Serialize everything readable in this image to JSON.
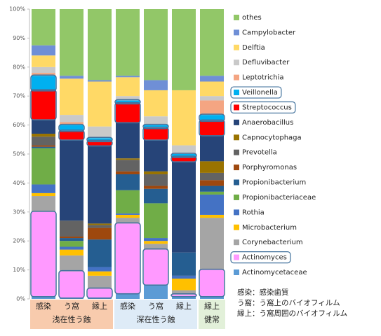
{
  "chart_data": {
    "type": "stacked_bar",
    "categories": [
      "感染",
      "う窩",
      "縁上",
      "感染",
      "う窩",
      "縁上",
      "縁上"
    ],
    "groups": [
      {
        "label": "浅在性う蝕",
        "color": "#f8cbad",
        "count": 3
      },
      {
        "label": "深在性う蝕",
        "color": "#deebf7",
        "count": 3
      },
      {
        "label": "健常",
        "color": "#e2f0d9",
        "count": 1
      }
    ],
    "ylim": [
      0,
      100
    ],
    "yticks": [
      {
        "value": 0,
        "label": "0%"
      },
      {
        "value": 10,
        "label": "10%"
      },
      {
        "value": 20,
        "label": "20%"
      },
      {
        "value": 30,
        "label": "30%"
      },
      {
        "value": 40,
        "label": "40%"
      },
      {
        "value": 50,
        "label": "50%"
      },
      {
        "value": 60,
        "label": "60%"
      },
      {
        "value": 70,
        "label": "70%"
      },
      {
        "value": 80,
        "label": "80%"
      },
      {
        "value": 90,
        "label": "90%"
      },
      {
        "value": 100,
        "label": "100%"
      }
    ],
    "series": [
      {
        "name": "Actinomycetaceae",
        "color": "#5b9bd5",
        "values": [
          1,
          0.5,
          0.5,
          2,
          5,
          1,
          1
        ]
      },
      {
        "name": "Actinomyces",
        "color": "#ff99ff",
        "highlight": true,
        "values": [
          29,
          9,
          3,
          24,
          12,
          0.5,
          9
        ]
      },
      {
        "name": "Corynebacterium",
        "color": "#a5a5a5",
        "values": [
          5.5,
          5.5,
          4.5,
          2,
          2,
          1.5,
          18
        ]
      },
      {
        "name": "Microbacterium",
        "color": "#ffc000",
        "values": [
          1,
          2,
          1.5,
          1,
          1,
          4,
          1
        ]
      },
      {
        "name": "Rothia",
        "color": "#4472c4",
        "values": [
          3,
          1,
          1.5,
          0.5,
          1,
          1,
          7
        ]
      },
      {
        "name": "Propionibacteriaceae",
        "color": "#70ad47",
        "values": [
          12.5,
          2,
          0,
          8,
          12,
          0,
          1
        ]
      },
      {
        "name": "Propionibacterium",
        "color": "#255e91",
        "values": [
          0.5,
          1,
          9.5,
          5.5,
          5,
          8,
          2
        ]
      },
      {
        "name": "Porphyromonas",
        "color": "#9e480e",
        "values": [
          0.5,
          0.5,
          4,
          1,
          1,
          0,
          2
        ]
      },
      {
        "name": "Prevotella",
        "color": "#636363",
        "values": [
          3,
          5.5,
          1,
          4,
          4,
          0,
          2.5
        ]
      },
      {
        "name": "Capnocytophaga",
        "color": "#997300",
        "values": [
          1,
          0,
          0.5,
          0.5,
          1,
          0,
          4
        ]
      },
      {
        "name": "Anaerobacillus",
        "color": "#264478",
        "values": [
          5,
          28,
          27,
          12.5,
          11,
          31.5,
          9
        ]
      },
      {
        "name": "Streptococcus",
        "color": "#ff0000",
        "highlight": true,
        "values": [
          10,
          3,
          1.5,
          6.5,
          4,
          1.5,
          5
        ]
      },
      {
        "name": "Veillonella",
        "color": "#00b0f0",
        "highlight": true,
        "values": [
          5,
          2,
          1,
          1,
          1,
          1,
          2
        ]
      },
      {
        "name": "Leptotrichia",
        "color": "#f4a582",
        "values": [
          1,
          1,
          0,
          0,
          0,
          0,
          5
        ]
      },
      {
        "name": "Defluvibacter",
        "color": "#c9c9c9",
        "values": [
          2,
          2.5,
          4,
          1.5,
          3,
          3,
          1.5
        ]
      },
      {
        "name": "Delftia",
        "color": "#ffd966",
        "values": [
          4,
          12.5,
          15.5,
          6.5,
          9,
          19,
          5
        ]
      },
      {
        "name": "Campylobacter",
        "color": "#6f8fd6",
        "values": [
          3.5,
          1,
          0.5,
          0.5,
          3.5,
          0,
          2
        ]
      },
      {
        "name": "othes",
        "color": "#92c768",
        "values": [
          12.5,
          23,
          24.5,
          23,
          24.5,
          28,
          23
        ]
      }
    ],
    "annotations": [
      "感染：感染歯質",
      "う窩：う窩上のバイオフィルム",
      "縁上：う窩周囲のバイオフィルム"
    ]
  }
}
